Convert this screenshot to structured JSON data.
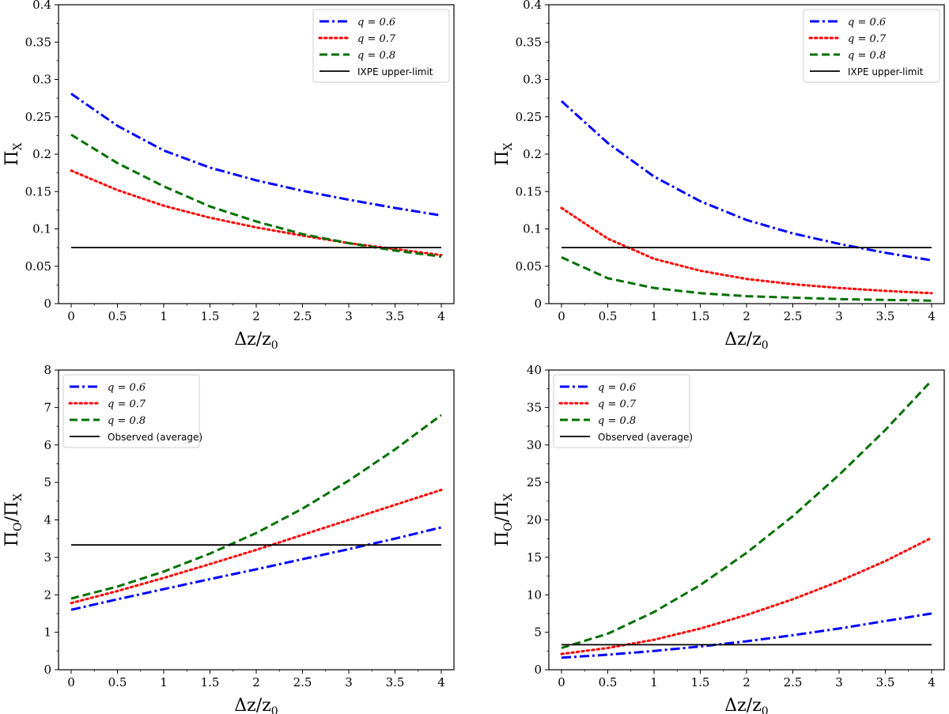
{
  "chart_data": [
    {
      "type": "line",
      "panel": "top-left",
      "xlabel": "Δz/z",
      "xlabel_sub": "0",
      "ylabel": "Π",
      "ylabel_sub": "X",
      "xlim": [
        0,
        4
      ],
      "ylim": [
        0,
        0.4
      ],
      "xticks": [
        0,
        0.5,
        1,
        1.5,
        2,
        2.5,
        3,
        3.5,
        4
      ],
      "xtick_labels": [
        "0",
        "0.5",
        "1",
        "1.5",
        "2",
        "2.5",
        "3",
        "3.5",
        "4"
      ],
      "yticks": [
        0,
        0.05,
        0.1,
        0.15,
        0.2,
        0.25,
        0.3,
        0.35,
        0.4
      ],
      "ytick_labels": [
        "0",
        "0.05",
        "0.1",
        "0.15",
        "0.2",
        "0.25",
        "0.3",
        "0.35",
        "0.4"
      ],
      "legend_position": "top-right",
      "x": [
        0,
        0.5,
        1,
        1.5,
        2,
        2.5,
        3,
        3.5,
        4
      ],
      "series": [
        {
          "name": "q = 0.6",
          "color": "#0000ff",
          "style": "dashdot",
          "values": [
            0.281,
            0.238,
            0.205,
            0.182,
            0.165,
            0.151,
            0.139,
            0.128,
            0.118
          ]
        },
        {
          "name": "q = 0.7",
          "color": "#ff0000",
          "style": "dotted",
          "values": [
            0.178,
            0.152,
            0.131,
            0.115,
            0.102,
            0.091,
            0.081,
            0.073,
            0.065
          ]
        },
        {
          "name": "q = 0.8",
          "color": "#007000",
          "style": "dashed",
          "values": [
            0.226,
            0.188,
            0.157,
            0.13,
            0.11,
            0.093,
            0.081,
            0.071,
            0.063
          ]
        },
        {
          "name": "IXPE upper-limit",
          "color": "#000000",
          "style": "solid",
          "values": [
            0.075,
            0.075,
            0.075,
            0.075,
            0.075,
            0.075,
            0.075,
            0.075,
            0.075
          ]
        }
      ]
    },
    {
      "type": "line",
      "panel": "top-right",
      "xlabel": "Δz/z",
      "xlabel_sub": "0",
      "ylabel": "Π",
      "ylabel_sub": "X",
      "xlim": [
        0,
        4
      ],
      "ylim": [
        0,
        0.4
      ],
      "xticks": [
        0,
        0.5,
        1,
        1.5,
        2,
        2.5,
        3,
        3.5,
        4
      ],
      "xtick_labels": [
        "0",
        "0.5",
        "1",
        "1.5",
        "2",
        "2.5",
        "3",
        "3.5",
        "4"
      ],
      "yticks": [
        0,
        0.05,
        0.1,
        0.15,
        0.2,
        0.25,
        0.3,
        0.35,
        0.4
      ],
      "ytick_labels": [
        "0",
        "0.05",
        "0.1",
        "0.15",
        "0.2",
        "0.25",
        "0.3",
        "0.35",
        "0.4"
      ],
      "legend_position": "top-right",
      "x": [
        0,
        0.5,
        1,
        1.5,
        2,
        2.5,
        3,
        3.5,
        4
      ],
      "series": [
        {
          "name": "q = 0.6",
          "color": "#0000ff",
          "style": "dashdot",
          "values": [
            0.271,
            0.215,
            0.17,
            0.137,
            0.112,
            0.094,
            0.08,
            0.068,
            0.058
          ]
        },
        {
          "name": "q = 0.7",
          "color": "#ff0000",
          "style": "dotted",
          "values": [
            0.128,
            0.087,
            0.06,
            0.044,
            0.033,
            0.026,
            0.021,
            0.017,
            0.014
          ]
        },
        {
          "name": "q = 0.8",
          "color": "#007000",
          "style": "dashed",
          "values": [
            0.062,
            0.034,
            0.021,
            0.014,
            0.01,
            0.008,
            0.006,
            0.005,
            0.004
          ]
        },
        {
          "name": "IXPE upper-limit",
          "color": "#000000",
          "style": "solid",
          "values": [
            0.075,
            0.075,
            0.075,
            0.075,
            0.075,
            0.075,
            0.075,
            0.075,
            0.075
          ]
        }
      ]
    },
    {
      "type": "line",
      "panel": "bottom-left",
      "xlabel": "Δz/z",
      "xlabel_sub": "0",
      "ylabel": "Π",
      "ylabel_sub": "O",
      "ylabel_tail": "/Π",
      "ylabel_tail_sub": "X",
      "xlim": [
        0,
        4
      ],
      "ylim": [
        0,
        8
      ],
      "xticks": [
        0,
        0.5,
        1,
        1.5,
        2,
        2.5,
        3,
        3.5,
        4
      ],
      "xtick_labels": [
        "0",
        "0.5",
        "1",
        "1.5",
        "2",
        "2.5",
        "3",
        "3.5",
        "4"
      ],
      "yticks": [
        0,
        1,
        2,
        3,
        4,
        5,
        6,
        7,
        8
      ],
      "ytick_labels": [
        "0",
        "1",
        "2",
        "3",
        "4",
        "5",
        "6",
        "7",
        "8"
      ],
      "legend_position": "top-left",
      "x": [
        0,
        0.5,
        1,
        1.5,
        2,
        2.5,
        3,
        3.5,
        4
      ],
      "series": [
        {
          "name": "q = 0.6",
          "color": "#0000ff",
          "style": "dashdot",
          "values": [
            1.6,
            1.88,
            2.15,
            2.42,
            2.68,
            2.95,
            3.22,
            3.5,
            3.8
          ]
        },
        {
          "name": "q = 0.7",
          "color": "#ff0000",
          "style": "dotted",
          "values": [
            1.78,
            2.1,
            2.45,
            2.82,
            3.2,
            3.6,
            4.0,
            4.4,
            4.8
          ]
        },
        {
          "name": "q = 0.8",
          "color": "#007000",
          "style": "dashed",
          "values": [
            1.9,
            2.22,
            2.62,
            3.1,
            3.65,
            4.3,
            5.05,
            5.88,
            6.8
          ]
        },
        {
          "name": "Observed (average)",
          "color": "#000000",
          "style": "solid",
          "values": [
            3.33,
            3.33,
            3.33,
            3.33,
            3.33,
            3.33,
            3.33,
            3.33,
            3.33
          ]
        }
      ]
    },
    {
      "type": "line",
      "panel": "bottom-right",
      "xlabel": "Δz/z",
      "xlabel_sub": "0",
      "ylabel": "Π",
      "ylabel_sub": "O",
      "ylabel_tail": "/Π",
      "ylabel_tail_sub": "X",
      "xlim": [
        0,
        4
      ],
      "ylim": [
        0,
        40
      ],
      "xticks": [
        0,
        0.5,
        1,
        1.5,
        2,
        2.5,
        3,
        3.5,
        4
      ],
      "xtick_labels": [
        "0",
        "0.5",
        "1",
        "1.5",
        "2",
        "2.5",
        "3",
        "3.5",
        "4"
      ],
      "yticks": [
        0,
        5,
        10,
        15,
        20,
        25,
        30,
        35,
        40
      ],
      "ytick_labels": [
        "0",
        "5",
        "10",
        "15",
        "20",
        "25",
        "30",
        "35",
        "40"
      ],
      "legend_position": "top-left",
      "x": [
        0,
        0.5,
        1,
        1.5,
        2,
        2.5,
        3,
        3.5,
        4
      ],
      "series": [
        {
          "name": "q = 0.6",
          "color": "#0000ff",
          "style": "dashdot",
          "values": [
            1.6,
            2.0,
            2.5,
            3.1,
            3.8,
            4.6,
            5.5,
            6.5,
            7.5
          ]
        },
        {
          "name": "q = 0.7",
          "color": "#ff0000",
          "style": "dotted",
          "values": [
            2.1,
            2.9,
            4.0,
            5.5,
            7.3,
            9.4,
            11.8,
            14.5,
            17.6
          ]
        },
        {
          "name": "q = 0.8",
          "color": "#007000",
          "style": "dashed",
          "values": [
            2.9,
            4.8,
            7.7,
            11.3,
            15.6,
            20.5,
            26.0,
            32.0,
            38.6
          ]
        },
        {
          "name": "Observed (average)",
          "color": "#000000",
          "style": "solid",
          "values": [
            3.33,
            3.33,
            3.33,
            3.33,
            3.33,
            3.33,
            3.33,
            3.33,
            3.33
          ]
        }
      ]
    }
  ]
}
